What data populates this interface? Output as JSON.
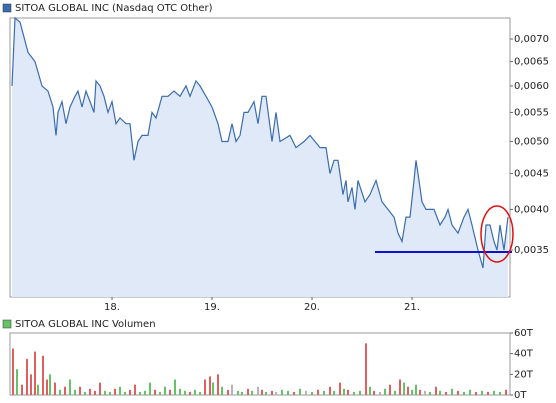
{
  "chart_data": [
    {
      "type": "line",
      "title": "SITOA GLOBAL INC (Nasdaq OTC Other)",
      "color": "#3a6db0",
      "fill": "#dfe9f8",
      "log_scale": true,
      "xlim": [
        16.98,
        21.98
      ],
      "xticks": [
        {
          "value": 18,
          "label": "18."
        },
        {
          "value": 19,
          "label": "19."
        },
        {
          "value": 20,
          "label": "20."
        },
        {
          "value": 21,
          "label": "21."
        }
      ],
      "ylim": [
        0.003,
        0.0075
      ],
      "yticks": [
        {
          "value": 0.0035,
          "label": "0,0035"
        },
        {
          "value": 0.004,
          "label": "0,0040"
        },
        {
          "value": 0.0045,
          "label": "0,0045"
        },
        {
          "value": 0.005,
          "label": "0,0050"
        },
        {
          "value": 0.0055,
          "label": "0,0055"
        },
        {
          "value": 0.006,
          "label": "0,0060"
        },
        {
          "value": 0.0065,
          "label": "0,0065"
        },
        {
          "value": 0.007,
          "label": "0,0070"
        }
      ],
      "x": [
        17.0,
        17.03,
        17.08,
        17.16,
        17.23,
        17.3,
        17.36,
        17.41,
        17.44,
        17.46,
        17.5,
        17.54,
        17.58,
        17.63,
        17.66,
        17.7,
        17.74,
        17.78,
        17.82,
        17.84,
        17.88,
        17.92,
        17.96,
        18.0,
        18.04,
        18.08,
        18.14,
        18.18,
        18.22,
        18.26,
        18.3,
        18.36,
        18.4,
        18.44,
        18.5,
        18.56,
        18.62,
        18.68,
        18.74,
        18.78,
        18.84,
        18.88,
        18.94,
        19.0,
        19.06,
        19.1,
        19.16,
        19.2,
        19.24,
        19.28,
        19.32,
        19.36,
        19.42,
        19.46,
        19.5,
        19.54,
        19.6,
        19.64,
        19.68,
        19.78,
        19.84,
        19.92,
        19.98,
        20.08,
        20.14,
        20.18,
        20.22,
        20.26,
        20.31,
        20.34,
        20.36,
        20.4,
        20.43,
        20.46,
        20.53,
        20.58,
        20.64,
        20.7,
        20.76,
        20.82,
        20.86,
        20.9,
        20.94,
        20.98,
        21.02,
        21.04,
        21.06,
        21.1,
        21.14,
        21.22,
        21.28,
        21.33,
        21.36,
        21.4,
        21.46,
        21.52,
        21.56,
        21.6,
        21.66,
        21.71,
        21.74,
        21.78,
        21.82,
        21.85,
        21.88,
        21.92,
        21.96
      ],
      "values": [
        0.006,
        0.0075,
        0.0074,
        0.0067,
        0.0065,
        0.006,
        0.0059,
        0.0056,
        0.0051,
        0.0055,
        0.0057,
        0.0053,
        0.0056,
        0.0058,
        0.0059,
        0.0056,
        0.0059,
        0.0057,
        0.0055,
        0.0061,
        0.006,
        0.0058,
        0.0055,
        0.0057,
        0.0053,
        0.0054,
        0.0053,
        0.0053,
        0.0047,
        0.005,
        0.0051,
        0.0051,
        0.0055,
        0.0054,
        0.0058,
        0.0058,
        0.0059,
        0.0058,
        0.006,
        0.0058,
        0.0061,
        0.006,
        0.0058,
        0.0056,
        0.0053,
        0.005,
        0.005,
        0.0053,
        0.005,
        0.0051,
        0.0055,
        0.0055,
        0.0057,
        0.0053,
        0.0058,
        0.0058,
        0.005,
        0.0055,
        0.005,
        0.0051,
        0.0049,
        0.005,
        0.0051,
        0.0049,
        0.0049,
        0.0045,
        0.0047,
        0.0047,
        0.0042,
        0.0044,
        0.0041,
        0.0043,
        0.004,
        0.0044,
        0.0041,
        0.0042,
        0.0044,
        0.0041,
        0.004,
        0.0039,
        0.0037,
        0.0036,
        0.0039,
        0.0039,
        0.0044,
        0.0047,
        0.0045,
        0.0041,
        0.004,
        0.004,
        0.0038,
        0.0039,
        0.004,
        0.0038,
        0.0037,
        0.0039,
        0.004,
        0.0038,
        0.0035,
        0.0033,
        0.0038,
        0.0038,
        0.0036,
        0.0035,
        0.0038,
        0.0035,
        0.0039
      ]
    },
    {
      "type": "bar",
      "title": "SITOA GLOBAL INC Volumen",
      "color": "#66c266",
      "xlim": [
        16.98,
        21.98
      ],
      "ylim": [
        0,
        60
      ],
      "yticks": [
        {
          "value": 0,
          "label": "0T"
        },
        {
          "value": 20,
          "label": "20T"
        },
        {
          "value": 40,
          "label": "40T"
        },
        {
          "value": 60,
          "label": "60T"
        }
      ],
      "x": [
        17.01,
        17.05,
        17.1,
        17.15,
        17.19,
        17.23,
        17.26,
        17.31,
        17.35,
        17.38,
        17.43,
        17.48,
        17.53,
        17.58,
        17.63,
        17.68,
        17.73,
        17.78,
        17.83,
        17.88,
        17.93,
        17.98,
        18.03,
        18.08,
        18.13,
        18.18,
        18.23,
        18.28,
        18.33,
        18.38,
        18.43,
        18.48,
        18.53,
        18.58,
        18.63,
        18.68,
        18.73,
        18.78,
        18.83,
        18.88,
        18.93,
        18.98,
        19.01,
        19.06,
        19.1,
        19.16,
        19.2,
        19.26,
        19.3,
        19.36,
        19.4,
        19.46,
        19.5,
        19.54,
        19.6,
        19.64,
        19.7,
        19.76,
        19.82,
        19.88,
        19.94,
        20.0,
        20.06,
        20.12,
        20.18,
        20.22,
        20.28,
        20.32,
        20.36,
        20.42,
        20.48,
        20.54,
        20.58,
        20.62,
        20.68,
        20.73,
        20.78,
        20.83,
        20.88,
        20.92,
        20.96,
        21.0,
        21.04,
        21.08,
        21.13,
        21.18,
        21.24,
        21.28,
        21.34,
        21.4,
        21.46,
        21.52,
        21.58,
        21.64,
        21.7,
        21.76,
        21.82,
        21.88,
        21.94
      ],
      "values": [
        45,
        25,
        10,
        35,
        20,
        42,
        10,
        38,
        15,
        20,
        12,
        5,
        8,
        15,
        5,
        8,
        3,
        6,
        4,
        12,
        4,
        3,
        6,
        8,
        3,
        5,
        10,
        3,
        4,
        12,
        5,
        3,
        8,
        5,
        15,
        6,
        4,
        3,
        5,
        3,
        15,
        18,
        12,
        20,
        8,
        5,
        10,
        4,
        3,
        6,
        4,
        8,
        5,
        3,
        4,
        3,
        5,
        4,
        3,
        6,
        4,
        3,
        5,
        4,
        8,
        4,
        12,
        6,
        5,
        3,
        4,
        50,
        8,
        4,
        3,
        6,
        10,
        4,
        15,
        12,
        8,
        5,
        10,
        5,
        4,
        3,
        8,
        4,
        3,
        6,
        4,
        3,
        5,
        3,
        4,
        3,
        4,
        3,
        5
      ],
      "colors": [
        "#e06060",
        "#66c266",
        "#e06060",
        "#e06060",
        "#e06060",
        "#e06060",
        "#66c266",
        "#e06060",
        "#e06060",
        "#66c266",
        "#e06060",
        "#66c266",
        "#e06060",
        "#66c266",
        "#66c266",
        "#e06060",
        "#66c266",
        "#e06060",
        "#e06060",
        "#e06060",
        "#66c266",
        "#66c266",
        "#e06060",
        "#66c266",
        "#66c266",
        "#e06060",
        "#e06060",
        "#66c266",
        "#66c266",
        "#66c266",
        "#e06060",
        "#66c266",
        "#66c266",
        "#e06060",
        "#66c266",
        "#66c266",
        "#66c266",
        "#e06060",
        "#66c266",
        "#66c266",
        "#e06060",
        "#e06060",
        "#66c266",
        "#e06060",
        "#66c266",
        "#e06060",
        "#b4b4b4",
        "#66c266",
        "#66c266",
        "#e06060",
        "#66c266",
        "#b4b4b4",
        "#e06060",
        "#66c266",
        "#e06060",
        "#b4b4b4",
        "#66c266",
        "#66c266",
        "#e06060",
        "#66c266",
        "#b4b4b4",
        "#66c266",
        "#e06060",
        "#66c266",
        "#e06060",
        "#66c266",
        "#e06060",
        "#66c266",
        "#e06060",
        "#66c266",
        "#66c266",
        "#e06060",
        "#66c266",
        "#e06060",
        "#b4b4b4",
        "#66c266",
        "#e06060",
        "#66c266",
        "#e06060",
        "#66c266",
        "#e06060",
        "#66c266",
        "#66c266",
        "#e06060",
        "#b4b4b4",
        "#66c266",
        "#e06060",
        "#66c266",
        "#e06060",
        "#66c266",
        "#e06060",
        "#66c266",
        "#66c266",
        "#e06060",
        "#66c266",
        "#e06060",
        "#66c266",
        "#66c266",
        "#e06060"
      ]
    }
  ]
}
